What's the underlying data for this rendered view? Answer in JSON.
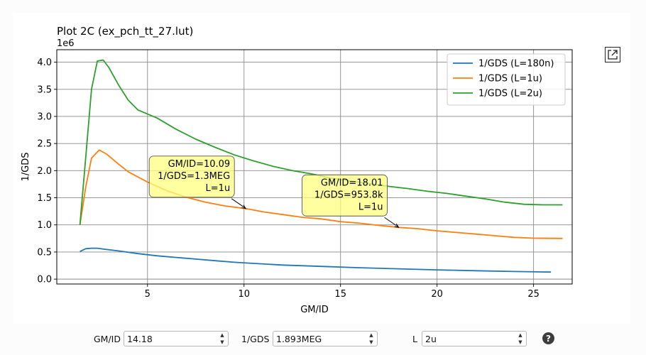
{
  "chart_data": {
    "type": "line",
    "title": "Plot 2C (ex_pch_tt_27.lut)",
    "xlabel": "GM/ID",
    "ylabel": "1/GDS",
    "y_offset_text": "1e6",
    "xlim": [
      0.3,
      27.0
    ],
    "ylim": [
      -0.09,
      4.23
    ],
    "x_ticks": [
      5,
      10,
      15,
      20,
      25
    ],
    "y_ticks": [
      0.0,
      0.5,
      1.0,
      1.5,
      2.0,
      2.5,
      3.0,
      3.5,
      4.0
    ],
    "y_tick_labels": [
      "0.0",
      "0.5",
      "1.0",
      "1.5",
      "2.0",
      "2.5",
      "3.0",
      "3.5",
      "4.0"
    ],
    "grid": true,
    "legend_position": "top-right",
    "series": [
      {
        "name": "1/GDS (L=180n)",
        "color": "#1f77b4",
        "x": [
          1.5,
          1.8,
          2.1,
          2.4,
          2.8,
          3.5,
          4.5,
          5.5,
          6.5,
          7.5,
          8.5,
          9.5,
          10.5,
          12,
          14,
          16,
          18,
          20,
          22,
          24,
          25.9
        ],
        "y": [
          0.51,
          0.56,
          0.57,
          0.57,
          0.55,
          0.52,
          0.47,
          0.43,
          0.4,
          0.37,
          0.34,
          0.31,
          0.29,
          0.26,
          0.235,
          0.21,
          0.19,
          0.17,
          0.155,
          0.14,
          0.13
        ]
      },
      {
        "name": "1/GDS (L=1u)",
        "color": "#ff7f0e",
        "x": [
          1.5,
          1.8,
          2.1,
          2.5,
          2.9,
          3.5,
          4.0,
          5.0,
          6.0,
          7.0,
          8.0,
          9.0,
          10.09,
          11,
          12,
          13,
          14,
          15,
          16,
          17,
          18.01,
          19,
          20,
          21,
          22,
          23,
          24,
          25,
          26.5
        ],
        "y": [
          1.0,
          1.7,
          2.23,
          2.38,
          2.3,
          2.12,
          1.98,
          1.79,
          1.63,
          1.51,
          1.42,
          1.35,
          1.3,
          1.24,
          1.19,
          1.14,
          1.11,
          1.06,
          1.03,
          0.99,
          0.954,
          0.93,
          0.89,
          0.86,
          0.83,
          0.8,
          0.77,
          0.755,
          0.75
        ]
      },
      {
        "name": "1/GDS (L=2u)",
        "color": "#2ca02c",
        "x": [
          1.5,
          1.8,
          2.1,
          2.4,
          2.7,
          3.0,
          3.5,
          4.0,
          4.5,
          5.5,
          6.5,
          7.5,
          8.5,
          9.5,
          10.5,
          11.5,
          12.5,
          13.5,
          14.5,
          15.5,
          16.5,
          17.5,
          18.5,
          19.5,
          20.5,
          21.5,
          22.5,
          23.5,
          24.5,
          25.5,
          26.5
        ],
        "y": [
          1.0,
          2.25,
          3.5,
          4.02,
          4.04,
          3.9,
          3.58,
          3.3,
          3.12,
          2.97,
          2.76,
          2.58,
          2.43,
          2.29,
          2.18,
          2.08,
          2.0,
          1.94,
          1.86,
          1.81,
          1.76,
          1.71,
          1.67,
          1.62,
          1.58,
          1.53,
          1.48,
          1.42,
          1.38,
          1.37,
          1.37
        ]
      }
    ],
    "annotations": [
      {
        "lines": [
          "GM/ID=10.09",
          "1/GDS=1.3MEG",
          "L=1u"
        ],
        "point": [
          10.09,
          1.3
        ]
      },
      {
        "lines": [
          "GM/ID=18.01",
          "1/GDS=953.8k",
          "L=1u"
        ],
        "point": [
          18.01,
          0.954
        ]
      }
    ],
    "annotation_box_color": "#ffff80"
  },
  "controls": {
    "gmid_label": "GM/ID",
    "gmid_value": "14.18",
    "gds_label": "1/GDS",
    "gds_value": "1.893MEG",
    "l_label": "L",
    "l_value": "2u",
    "help_glyph": "?"
  },
  "icons": {
    "popout": "popout-icon",
    "help": "help-icon"
  }
}
